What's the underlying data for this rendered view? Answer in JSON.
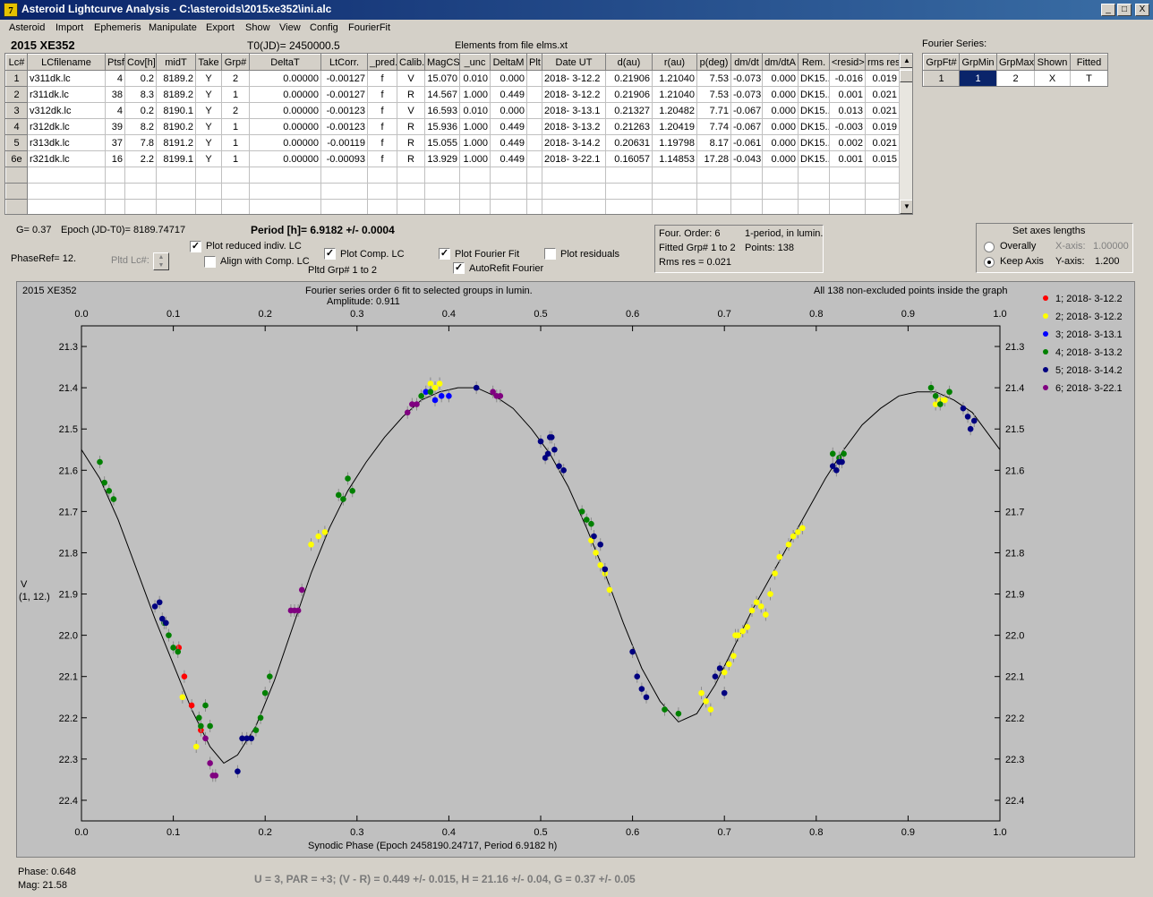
{
  "window": {
    "title": "Asteroid Lightcurve Analysis - C:\\asteroids\\2015xe352\\ini.alc",
    "app_icon_glyph": "7",
    "min_glyph": "_",
    "max_glyph": "□",
    "close_glyph": "X"
  },
  "menu": [
    "Asteroid",
    "Import",
    "Ephemeris",
    "Manipulate",
    "Export",
    "Show",
    "View",
    "Config",
    "FourierFit"
  ],
  "header": {
    "asteroid_name": "2015 XE352",
    "t0": "T0(JD)= 2450000.5",
    "elements": "Elements from file elms.xt"
  },
  "lc_table": {
    "columns": [
      "Lc#",
      "LCfilename",
      "Ptsf",
      "Cov[h]",
      "midT",
      "Take",
      "Grp#",
      "DeltaT",
      "LtCorr.",
      "_pred.",
      "Calib.",
      "MagCS",
      "_unc",
      "DeltaM",
      "Plt",
      "Date UT",
      "d(au)",
      "r(au)",
      "p(deg)",
      "dm/dt",
      "dm/dtA",
      "Rem.",
      "<resid>",
      "rms res"
    ],
    "rows": [
      [
        "1",
        "v311dk.lc",
        "4",
        "0.2",
        "8189.2",
        "Y",
        "2",
        "0.00000",
        "-0.00127",
        "f",
        "V",
        "15.070",
        "0.010",
        "0.000",
        "",
        "2018- 3-12.2",
        "0.21906",
        "1.21040",
        "7.53",
        "-0.073",
        "0.000",
        "DK15...",
        "-0.016",
        "0.019"
      ],
      [
        "2",
        "r311dk.lc",
        "38",
        "8.3",
        "8189.2",
        "Y",
        "1",
        "0.00000",
        "-0.00127",
        "f",
        "R",
        "14.567",
        "1.000",
        "0.449",
        "",
        "2018- 3-12.2",
        "0.21906",
        "1.21040",
        "7.53",
        "-0.073",
        "0.000",
        "DK15...",
        "0.001",
        "0.021"
      ],
      [
        "3",
        "v312dk.lc",
        "4",
        "0.2",
        "8190.1",
        "Y",
        "2",
        "0.00000",
        "-0.00123",
        "f",
        "V",
        "16.593",
        "0.010",
        "0.000",
        "",
        "2018- 3-13.1",
        "0.21327",
        "1.20482",
        "7.71",
        "-0.067",
        "0.000",
        "DK15...",
        "0.013",
        "0.021"
      ],
      [
        "4",
        "r312dk.lc",
        "39",
        "8.2",
        "8190.2",
        "Y",
        "1",
        "0.00000",
        "-0.00123",
        "f",
        "R",
        "15.936",
        "1.000",
        "0.449",
        "",
        "2018- 3-13.2",
        "0.21263",
        "1.20419",
        "7.74",
        "-0.067",
        "0.000",
        "DK15...",
        "-0.003",
        "0.019"
      ],
      [
        "5",
        "r313dk.lc",
        "37",
        "7.8",
        "8191.2",
        "Y",
        "1",
        "0.00000",
        "-0.00119",
        "f",
        "R",
        "15.055",
        "1.000",
        "0.449",
        "",
        "2018- 3-14.2",
        "0.20631",
        "1.19798",
        "8.17",
        "-0.061",
        "0.000",
        "DK15...",
        "0.002",
        "0.021"
      ],
      [
        "6e",
        "r321dk.lc",
        "16",
        "2.2",
        "8199.1",
        "Y",
        "1",
        "0.00000",
        "-0.00093",
        "f",
        "R",
        "13.929",
        "1.000",
        "0.449",
        "",
        "2018- 3-22.1",
        "0.16057",
        "1.14853",
        "17.28",
        "-0.043",
        "0.000",
        "DK15...",
        "0.001",
        "0.015"
      ],
      [
        "",
        "",
        "",
        "",
        "",
        "",
        "",
        "",
        "",
        "",
        "",
        "",
        "",
        "",
        "",
        "",
        "",
        "",
        "",
        "",
        "",
        "",
        "",
        ""
      ],
      [
        "",
        "",
        "",
        "",
        "",
        "",
        "",
        "",
        "",
        "",
        "",
        "",
        "",
        "",
        "",
        "",
        "",
        "",
        "",
        "",
        "",
        "",
        "",
        ""
      ],
      [
        "",
        "",
        "",
        "",
        "",
        "",
        "",
        "",
        "",
        "",
        "",
        "",
        "",
        "",
        "",
        "",
        "",
        "",
        "",
        "",
        "",
        "",
        "",
        ""
      ]
    ]
  },
  "fourier_series": {
    "title": "Fourier Series:",
    "columns": [
      "GrpFt#",
      "GrpMin",
      "GrpMax",
      "Shown",
      "Fitted"
    ],
    "row": [
      "1",
      "1",
      "2",
      "X",
      "T"
    ]
  },
  "controls": {
    "g_value": "G= 0.37",
    "epoch": "Epoch (JD-T0)= 8189.74717",
    "period": "Period [h]= 6.9182 +/- 0.0004",
    "phase_ref": "PhaseRef= 12.",
    "pltd_lc": "Pltd Lc#:",
    "plot_reduced": "Plot reduced indiv. LC",
    "align_comp": "Align with Comp. LC",
    "plot_comp": "Plot Comp. LC",
    "pltd_grp": "Pltd Grp#  1   to   2",
    "plot_fourier": "Plot Fourier Fit",
    "autorefit": "AutoRefit Fourier",
    "plot_residuals": "Plot residuals",
    "check_mark": "✓",
    "checks": {
      "plot_reduced": true,
      "align_comp": false,
      "plot_comp": true,
      "plot_fourier": true,
      "autorefit": true,
      "plot_residuals": false
    }
  },
  "fourier_info": {
    "order": "Four. Order:  6",
    "period_note": "1-period, in lumin.",
    "fitted": "Fitted Grp# 1 to 2",
    "points": "Points: 138",
    "rms": "Rms res     = 0.021"
  },
  "axes_lengths": {
    "title": "Set axes lengths",
    "overally": "Overally",
    "keep_axis": "Keep Axis",
    "x_axis_label": "X-axis:",
    "x_axis_value": "1.00000",
    "y_axis_label": "Y-axis:",
    "y_axis_value": "1.200",
    "selected": "keep_axis"
  },
  "plot": {
    "name_label": "2015 XE352",
    "title_line1": "Fourier series order 6 fit to selected groups in lumin.",
    "title_line2": "Amplitude: 0.911",
    "points_note": "All 138 non-excluded points inside the graph",
    "ylabel_line1": "V",
    "ylabel_line2": "(1, 12.)",
    "xlabel": "Synodic Phase (Epoch 2458190.24717, Period 6.9182 h)"
  },
  "chart_data": {
    "type": "scatter",
    "title": "Fourier series order 6 fit to selected groups in lumin.",
    "subtitle": "Amplitude: 0.911",
    "xlabel": "Synodic Phase (Epoch 2458190.24717, Period 6.9182 h)",
    "ylabel": "V (1, 12.)",
    "xlim": [
      0,
      1
    ],
    "ylim": [
      21.25,
      22.45
    ],
    "y_inverted": true,
    "x_ticks": [
      "0.0",
      "0.1",
      "0.2",
      "0.3",
      "0.4",
      "0.5",
      "0.6",
      "0.7",
      "0.8",
      "0.9",
      "1.0"
    ],
    "y_ticks": [
      "21.3",
      "21.4",
      "21.5",
      "21.6",
      "21.7",
      "21.8",
      "21.9",
      "22.0",
      "22.1",
      "22.2",
      "22.3",
      "22.4"
    ],
    "legend_position": "right",
    "series": [
      {
        "name": "1; 2018- 3-12.2",
        "color": "#ff0000",
        "points": [
          [
            0.106,
            22.03
          ],
          [
            0.112,
            22.1
          ],
          [
            0.12,
            22.17
          ],
          [
            0.13,
            22.23
          ]
        ]
      },
      {
        "name": "2; 2018- 3-12.2",
        "color": "#ffff00",
        "points": [
          [
            0.11,
            22.15
          ],
          [
            0.125,
            22.27
          ],
          [
            0.25,
            21.78
          ],
          [
            0.258,
            21.76
          ],
          [
            0.265,
            21.75
          ],
          [
            0.38,
            21.39
          ],
          [
            0.385,
            21.4
          ],
          [
            0.39,
            21.39
          ],
          [
            0.555,
            21.77
          ],
          [
            0.56,
            21.8
          ],
          [
            0.565,
            21.83
          ],
          [
            0.57,
            21.85
          ],
          [
            0.575,
            21.89
          ],
          [
            0.675,
            22.14
          ],
          [
            0.68,
            22.16
          ],
          [
            0.685,
            22.18
          ],
          [
            0.7,
            22.09
          ],
          [
            0.705,
            22.07
          ],
          [
            0.71,
            22.05
          ],
          [
            0.712,
            22.0
          ],
          [
            0.715,
            22.0
          ],
          [
            0.72,
            21.99
          ],
          [
            0.725,
            21.98
          ],
          [
            0.73,
            21.94
          ],
          [
            0.735,
            21.92
          ],
          [
            0.74,
            21.93
          ],
          [
            0.745,
            21.95
          ],
          [
            0.75,
            21.9
          ],
          [
            0.755,
            21.85
          ],
          [
            0.76,
            21.81
          ],
          [
            0.77,
            21.78
          ],
          [
            0.775,
            21.76
          ],
          [
            0.78,
            21.75
          ],
          [
            0.785,
            21.74
          ],
          [
            0.93,
            21.44
          ],
          [
            0.935,
            21.43
          ],
          [
            0.94,
            21.43
          ]
        ]
      },
      {
        "name": "3; 2018- 3-13.1",
        "color": "#0000ff",
        "points": [
          [
            0.375,
            21.41
          ],
          [
            0.385,
            21.43
          ],
          [
            0.392,
            21.42
          ],
          [
            0.4,
            21.42
          ]
        ]
      },
      {
        "name": "4; 2018- 3-13.2",
        "color": "#008000",
        "points": [
          [
            0.02,
            21.58
          ],
          [
            0.025,
            21.63
          ],
          [
            0.03,
            21.65
          ],
          [
            0.035,
            21.67
          ],
          [
            0.09,
            21.97
          ],
          [
            0.095,
            22.0
          ],
          [
            0.1,
            22.03
          ],
          [
            0.105,
            22.04
          ],
          [
            0.128,
            22.2
          ],
          [
            0.13,
            22.22
          ],
          [
            0.135,
            22.17
          ],
          [
            0.14,
            22.22
          ],
          [
            0.19,
            22.23
          ],
          [
            0.195,
            22.2
          ],
          [
            0.2,
            22.14
          ],
          [
            0.205,
            22.1
          ],
          [
            0.28,
            21.66
          ],
          [
            0.285,
            21.67
          ],
          [
            0.29,
            21.62
          ],
          [
            0.295,
            21.65
          ],
          [
            0.37,
            21.42
          ],
          [
            0.38,
            21.41
          ],
          [
            0.545,
            21.7
          ],
          [
            0.55,
            21.72
          ],
          [
            0.555,
            21.73
          ],
          [
            0.635,
            22.18
          ],
          [
            0.65,
            22.19
          ],
          [
            0.818,
            21.56
          ],
          [
            0.825,
            21.57
          ],
          [
            0.83,
            21.56
          ],
          [
            0.925,
            21.4
          ],
          [
            0.93,
            21.42
          ],
          [
            0.935,
            21.44
          ],
          [
            0.945,
            21.41
          ]
        ]
      },
      {
        "name": "5; 2018- 3-14.2",
        "color": "#000080",
        "points": [
          [
            0.08,
            21.93
          ],
          [
            0.085,
            21.92
          ],
          [
            0.088,
            21.96
          ],
          [
            0.092,
            21.97
          ],
          [
            0.17,
            22.33
          ],
          [
            0.175,
            22.25
          ],
          [
            0.18,
            22.25
          ],
          [
            0.185,
            22.25
          ],
          [
            0.43,
            21.4
          ],
          [
            0.5,
            21.53
          ],
          [
            0.505,
            21.57
          ],
          [
            0.508,
            21.56
          ],
          [
            0.51,
            21.52
          ],
          [
            0.512,
            21.52
          ],
          [
            0.515,
            21.55
          ],
          [
            0.52,
            21.59
          ],
          [
            0.525,
            21.6
          ],
          [
            0.558,
            21.76
          ],
          [
            0.565,
            21.78
          ],
          [
            0.57,
            21.84
          ],
          [
            0.6,
            22.04
          ],
          [
            0.605,
            22.1
          ],
          [
            0.61,
            22.13
          ],
          [
            0.615,
            22.15
          ],
          [
            0.69,
            22.1
          ],
          [
            0.695,
            22.08
          ],
          [
            0.7,
            22.14
          ],
          [
            0.818,
            21.59
          ],
          [
            0.822,
            21.6
          ],
          [
            0.825,
            21.58
          ],
          [
            0.828,
            21.58
          ],
          [
            0.96,
            21.45
          ],
          [
            0.965,
            21.47
          ],
          [
            0.968,
            21.5
          ],
          [
            0.972,
            21.48
          ]
        ]
      },
      {
        "name": "6; 2018- 3-22.1",
        "color": "#800080",
        "points": [
          [
            0.135,
            22.25
          ],
          [
            0.14,
            22.31
          ],
          [
            0.143,
            22.34
          ],
          [
            0.146,
            22.34
          ],
          [
            0.228,
            21.94
          ],
          [
            0.232,
            21.94
          ],
          [
            0.236,
            21.94
          ],
          [
            0.24,
            21.89
          ],
          [
            0.355,
            21.46
          ],
          [
            0.36,
            21.44
          ],
          [
            0.365,
            21.44
          ],
          [
            0.448,
            21.41
          ],
          [
            0.452,
            21.42
          ],
          [
            0.456,
            21.42
          ]
        ]
      }
    ],
    "fit_curve": [
      [
        0.0,
        21.55
      ],
      [
        0.02,
        21.62
      ],
      [
        0.04,
        21.72
      ],
      [
        0.06,
        21.84
      ],
      [
        0.08,
        21.96
      ],
      [
        0.1,
        22.07
      ],
      [
        0.12,
        22.18
      ],
      [
        0.14,
        22.27
      ],
      [
        0.155,
        22.31
      ],
      [
        0.17,
        22.29
      ],
      [
        0.19,
        22.22
      ],
      [
        0.21,
        22.11
      ],
      [
        0.23,
        21.98
      ],
      [
        0.25,
        21.85
      ],
      [
        0.27,
        21.74
      ],
      [
        0.29,
        21.65
      ],
      [
        0.31,
        21.58
      ],
      [
        0.33,
        21.52
      ],
      [
        0.35,
        21.47
      ],
      [
        0.37,
        21.43
      ],
      [
        0.39,
        21.41
      ],
      [
        0.41,
        21.4
      ],
      [
        0.43,
        21.4
      ],
      [
        0.45,
        21.42
      ],
      [
        0.47,
        21.45
      ],
      [
        0.49,
        21.5
      ],
      [
        0.51,
        21.56
      ],
      [
        0.53,
        21.64
      ],
      [
        0.55,
        21.74
      ],
      [
        0.57,
        21.85
      ],
      [
        0.59,
        21.97
      ],
      [
        0.61,
        22.08
      ],
      [
        0.63,
        22.16
      ],
      [
        0.65,
        22.21
      ],
      [
        0.67,
        22.19
      ],
      [
        0.69,
        22.12
      ],
      [
        0.71,
        22.03
      ],
      [
        0.73,
        21.94
      ],
      [
        0.75,
        21.86
      ],
      [
        0.77,
        21.78
      ],
      [
        0.79,
        21.7
      ],
      [
        0.81,
        21.62
      ],
      [
        0.83,
        21.55
      ],
      [
        0.85,
        21.49
      ],
      [
        0.87,
        21.45
      ],
      [
        0.89,
        21.42
      ],
      [
        0.91,
        21.41
      ],
      [
        0.93,
        21.41
      ],
      [
        0.95,
        21.43
      ],
      [
        0.97,
        21.46
      ],
      [
        0.99,
        21.52
      ],
      [
        1.0,
        21.55
      ]
    ]
  },
  "status": {
    "phase": "Phase:  0.648",
    "mag": "Mag:    21.58",
    "summary": "U = 3, PAR = +3; (V - R) = 0.449 +/- 0.015, H = 21.16 +/- 0.04, G = 0.37 +/- 0.05"
  }
}
